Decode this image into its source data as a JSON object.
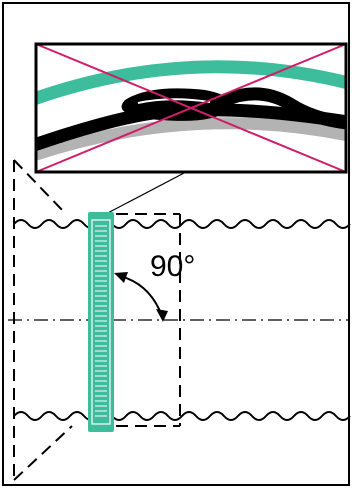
{
  "figure": {
    "angle_label": "90°"
  },
  "colors": {
    "background": "#ffffff",
    "frame": "#000000",
    "tie": "#3dbd9c",
    "tie_dark": "#1f6f59",
    "cable_teal": "#3dbd9c",
    "cable_gray": "#b3b3b3",
    "cross_out": "#d01f6a"
  },
  "inset": {
    "status": "incorrect",
    "cross_mark": "x-mark"
  }
}
